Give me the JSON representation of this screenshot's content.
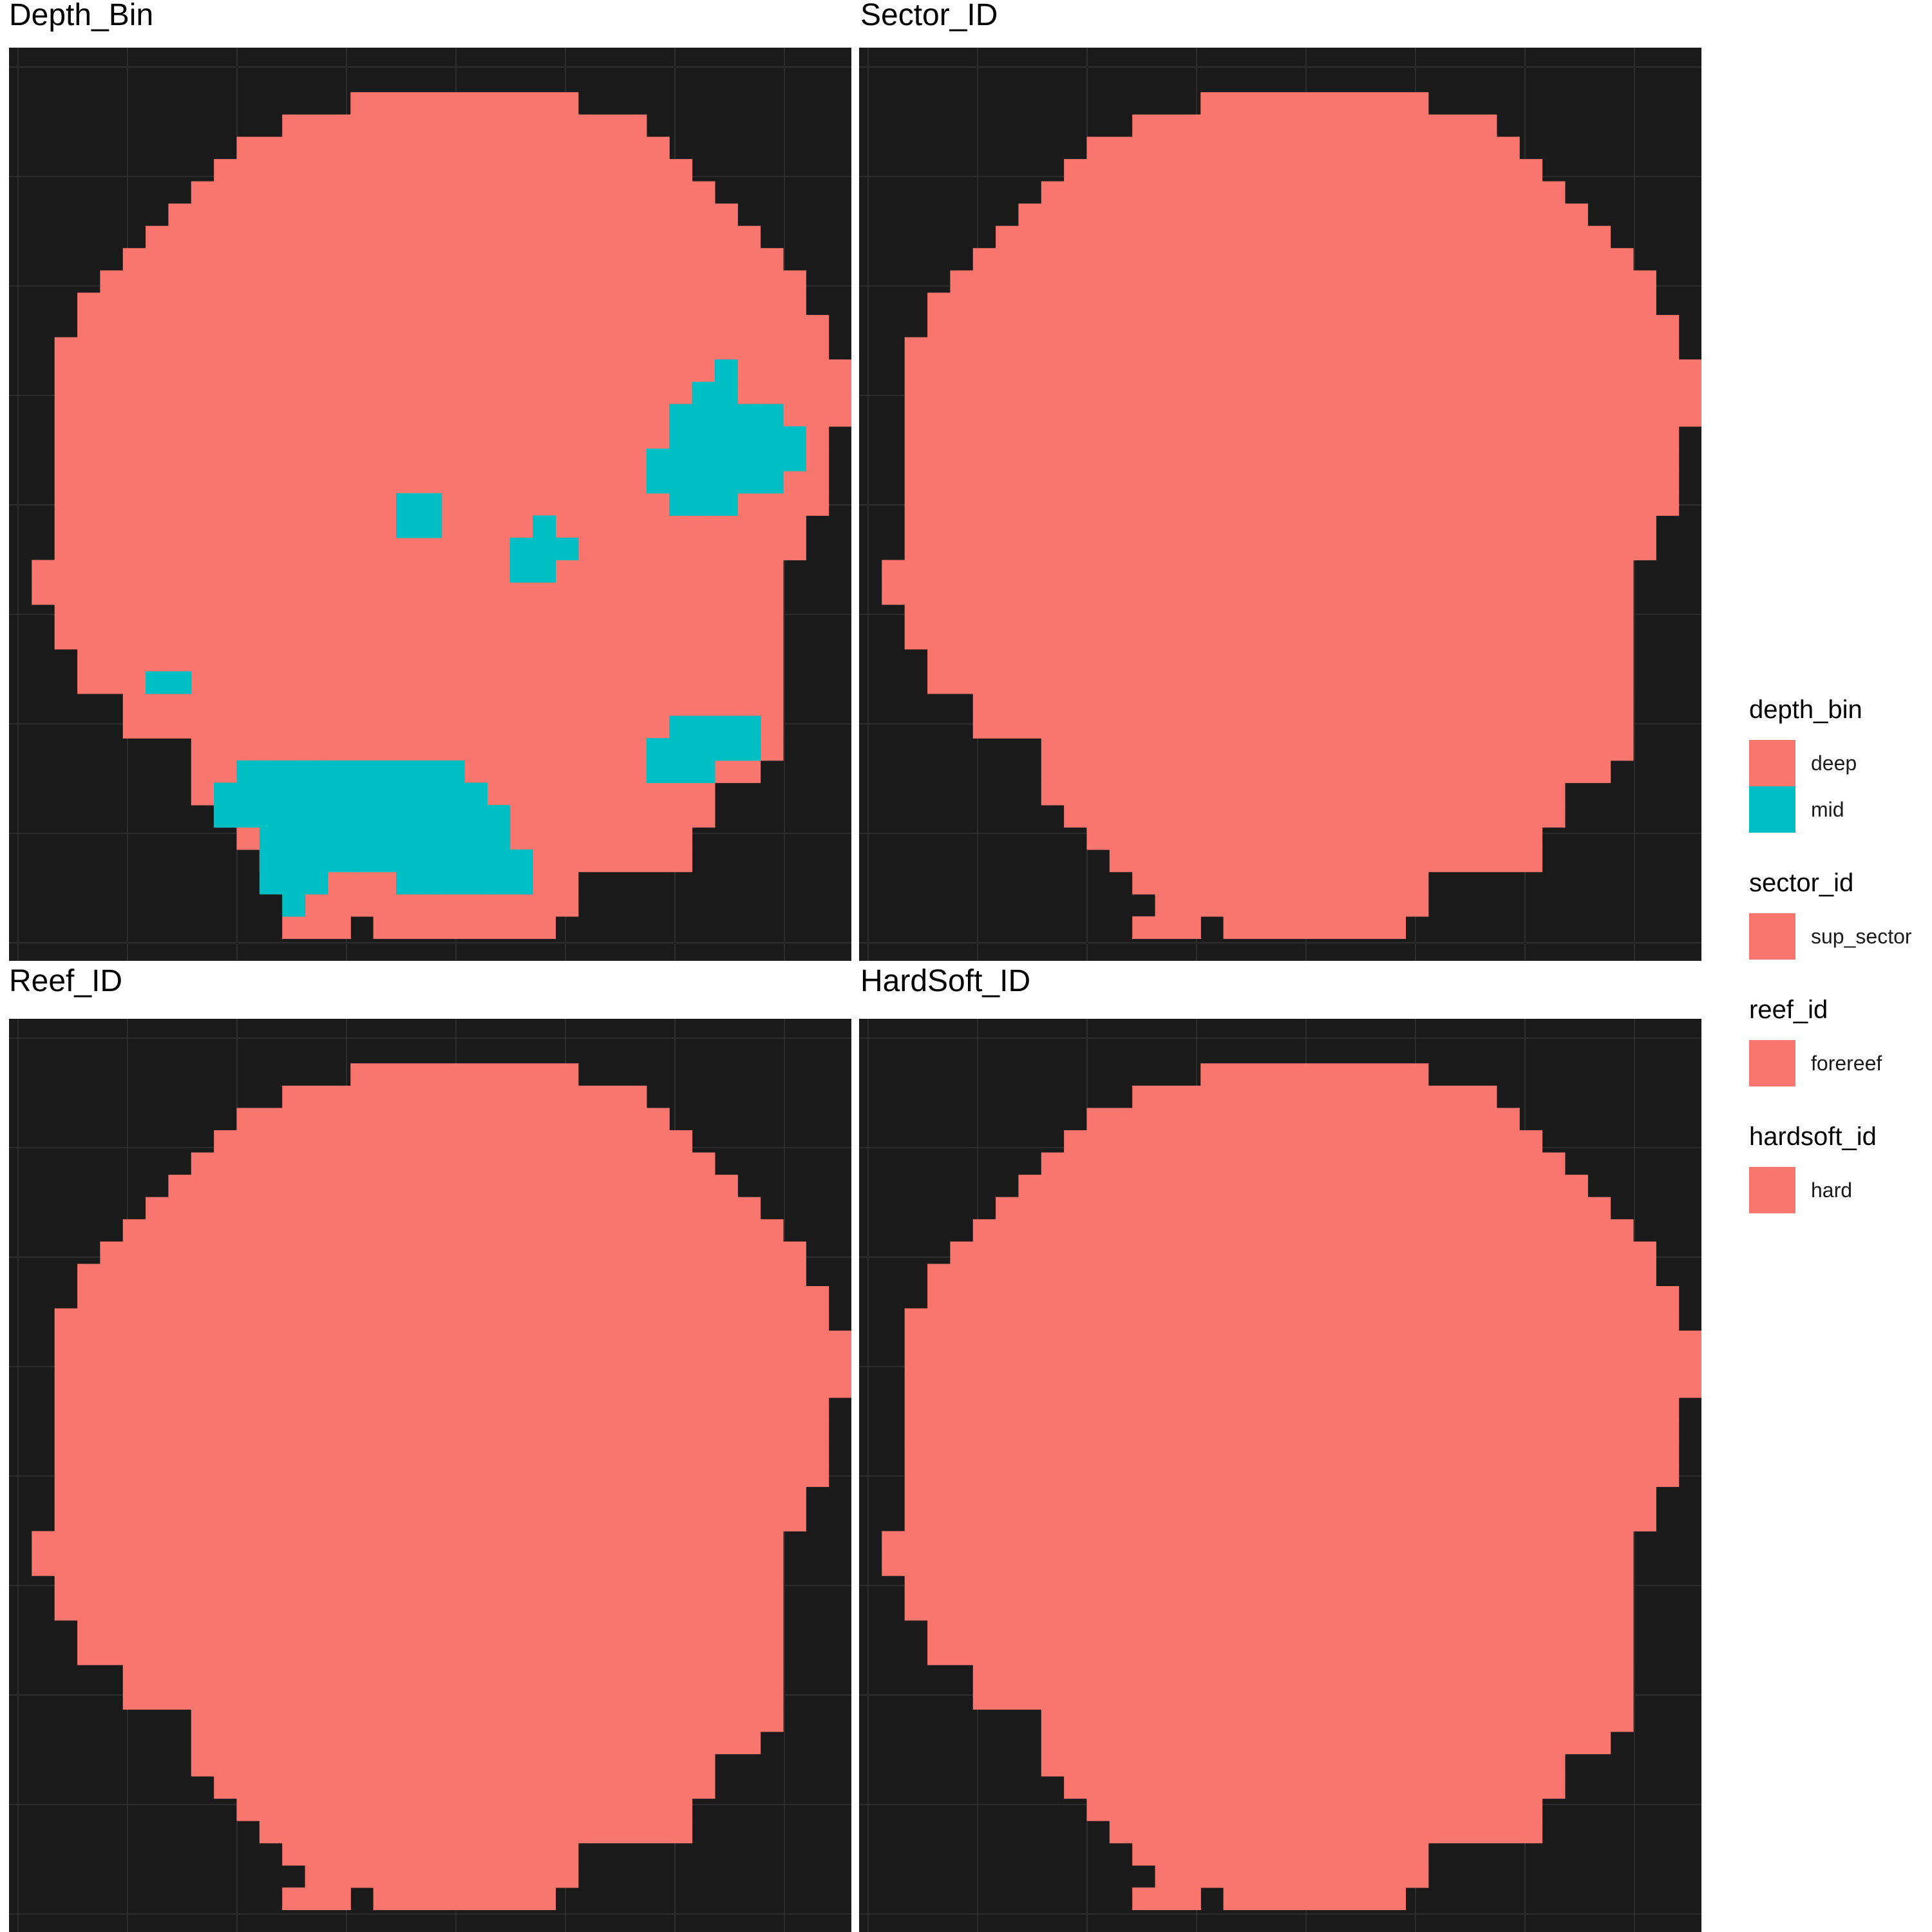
{
  "colors": {
    "background": "#1a1a1a",
    "grid": "#2d2d2d",
    "deep": "#f8766d",
    "mid": "#00bfc4"
  },
  "chart_data": {
    "type": "heatmap",
    "grid": true,
    "legend_position": "right",
    "raster": {
      "cols": 37,
      "rows": 41
    },
    "footprint_rows": [
      [],
      [],
      [
        [
          15,
          24
        ]
      ],
      [
        [
          12,
          27
        ]
      ],
      [
        [
          10,
          28
        ]
      ],
      [
        [
          9,
          29
        ]
      ],
      [
        [
          8,
          30
        ]
      ],
      [
        [
          7,
          31
        ]
      ],
      [
        [
          6,
          32
        ]
      ],
      [
        [
          5,
          33
        ]
      ],
      [
        [
          4,
          34
        ]
      ],
      [
        [
          3,
          34
        ]
      ],
      [
        [
          3,
          35
        ]
      ],
      [
        [
          2,
          35
        ]
      ],
      [
        [
          2,
          36
        ]
      ],
      [
        [
          2,
          36
        ]
      ],
      [
        [
          2,
          36
        ]
      ],
      [
        [
          2,
          35
        ]
      ],
      [
        [
          2,
          35
        ]
      ],
      [
        [
          2,
          35
        ]
      ],
      [
        [
          2,
          35
        ]
      ],
      [
        [
          2,
          34
        ]
      ],
      [
        [
          2,
          34
        ]
      ],
      [
        [
          1,
          33
        ]
      ],
      [
        [
          1,
          33
        ]
      ],
      [
        [
          2,
          33
        ]
      ],
      [
        [
          2,
          33
        ]
      ],
      [
        [
          3,
          33
        ]
      ],
      [
        [
          3,
          33
        ]
      ],
      [
        [
          5,
          33
        ]
      ],
      [
        [
          5,
          33
        ]
      ],
      [
        [
          8,
          33
        ]
      ],
      [
        [
          8,
          32
        ]
      ],
      [
        [
          8,
          30
        ]
      ],
      [
        [
          9,
          30
        ]
      ],
      [
        [
          10,
          29
        ]
      ],
      [
        [
          11,
          29
        ]
      ],
      [
        [
          12,
          24
        ]
      ],
      [
        [
          13,
          24
        ]
      ],
      [
        [
          12,
          14
        ],
        [
          16,
          23
        ]
      ],
      []
    ],
    "panels": [
      {
        "title": "Depth_Bin",
        "field": "depth_bin",
        "mid_cells": [
          [
            31,
            14
          ],
          [
            30,
            15
          ],
          [
            31,
            15
          ],
          [
            29,
            16
          ],
          [
            30,
            16
          ],
          [
            31,
            16
          ],
          [
            32,
            16
          ],
          [
            33,
            16
          ],
          [
            29,
            17
          ],
          [
            30,
            17
          ],
          [
            31,
            17
          ],
          [
            32,
            17
          ],
          [
            33,
            17
          ],
          [
            34,
            17
          ],
          [
            28,
            18
          ],
          [
            29,
            18
          ],
          [
            30,
            18
          ],
          [
            31,
            18
          ],
          [
            32,
            18
          ],
          [
            33,
            18
          ],
          [
            34,
            18
          ],
          [
            28,
            19
          ],
          [
            29,
            19
          ],
          [
            30,
            19
          ],
          [
            31,
            19
          ],
          [
            32,
            19
          ],
          [
            33,
            19
          ],
          [
            29,
            20
          ],
          [
            30,
            20
          ],
          [
            31,
            20
          ],
          [
            17,
            20
          ],
          [
            18,
            20
          ],
          [
            17,
            21
          ],
          [
            18,
            21
          ],
          [
            23,
            21
          ],
          [
            22,
            22
          ],
          [
            23,
            22
          ],
          [
            24,
            22
          ],
          [
            22,
            23
          ],
          [
            23,
            23
          ],
          [
            6,
            28
          ],
          [
            7,
            28
          ],
          [
            29,
            30
          ],
          [
            30,
            30
          ],
          [
            31,
            30
          ],
          [
            32,
            30
          ],
          [
            28,
            31
          ],
          [
            29,
            31
          ],
          [
            30,
            31
          ],
          [
            31,
            31
          ],
          [
            32,
            31
          ],
          [
            28,
            32
          ],
          [
            29,
            32
          ],
          [
            30,
            32
          ],
          [
            10,
            32
          ],
          [
            11,
            32
          ],
          [
            12,
            32
          ],
          [
            13,
            32
          ],
          [
            14,
            32
          ],
          [
            15,
            32
          ],
          [
            16,
            32
          ],
          [
            17,
            32
          ],
          [
            18,
            32
          ],
          [
            19,
            32
          ],
          [
            9,
            33
          ],
          [
            10,
            33
          ],
          [
            11,
            33
          ],
          [
            12,
            33
          ],
          [
            13,
            33
          ],
          [
            14,
            33
          ],
          [
            15,
            33
          ],
          [
            16,
            33
          ],
          [
            17,
            33
          ],
          [
            18,
            33
          ],
          [
            19,
            33
          ],
          [
            20,
            33
          ],
          [
            9,
            34
          ],
          [
            10,
            34
          ],
          [
            11,
            34
          ],
          [
            12,
            34
          ],
          [
            13,
            34
          ],
          [
            14,
            34
          ],
          [
            15,
            34
          ],
          [
            16,
            34
          ],
          [
            17,
            34
          ],
          [
            18,
            34
          ],
          [
            19,
            34
          ],
          [
            20,
            34
          ],
          [
            21,
            34
          ],
          [
            11,
            35
          ],
          [
            12,
            35
          ],
          [
            13,
            35
          ],
          [
            14,
            35
          ],
          [
            15,
            35
          ],
          [
            16,
            35
          ],
          [
            17,
            35
          ],
          [
            18,
            35
          ],
          [
            19,
            35
          ],
          [
            20,
            35
          ],
          [
            21,
            35
          ],
          [
            11,
            36
          ],
          [
            12,
            36
          ],
          [
            13,
            36
          ],
          [
            14,
            36
          ],
          [
            15,
            36
          ],
          [
            16,
            36
          ],
          [
            17,
            36
          ],
          [
            18,
            36
          ],
          [
            19,
            36
          ],
          [
            20,
            36
          ],
          [
            21,
            36
          ],
          [
            22,
            36
          ],
          [
            11,
            37
          ],
          [
            12,
            37
          ],
          [
            13,
            37
          ],
          [
            17,
            37
          ],
          [
            18,
            37
          ],
          [
            19,
            37
          ],
          [
            20,
            37
          ],
          [
            21,
            37
          ],
          [
            22,
            37
          ],
          [
            12,
            38
          ]
        ]
      },
      {
        "title": "Sector_ID",
        "field": "sector_id",
        "mid_cells": []
      },
      {
        "title": "Reef_ID",
        "field": "reef_id",
        "mid_cells": []
      },
      {
        "title": "HardSoft_ID",
        "field": "hardsoft_id",
        "mid_cells": []
      }
    ],
    "legends": [
      {
        "title": "depth_bin",
        "entries": [
          {
            "label": "deep",
            "color": "#f8766d"
          },
          {
            "label": "mid",
            "color": "#00bfc4"
          }
        ]
      },
      {
        "title": "sector_id",
        "entries": [
          {
            "label": "sup_sector",
            "color": "#f8766d"
          }
        ]
      },
      {
        "title": "reef_id",
        "entries": [
          {
            "label": "forereef",
            "color": "#f8766d"
          }
        ]
      },
      {
        "title": "hardsoft_id",
        "entries": [
          {
            "label": "hard",
            "color": "#f8766d"
          }
        ]
      }
    ]
  }
}
